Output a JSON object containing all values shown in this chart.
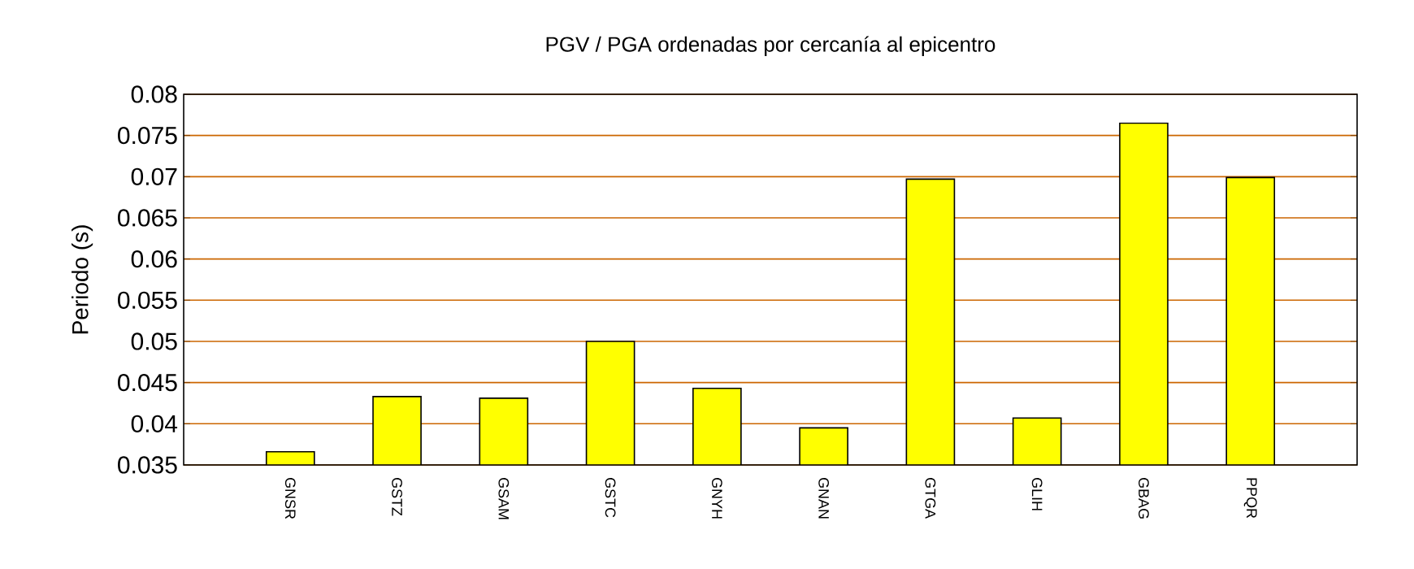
{
  "chart_data": {
    "type": "bar",
    "title": "PGV / PGA ordenadas por cercanía al epicentro",
    "ylabel": "Periodo (s)",
    "categories": [
      "GNSR",
      "GSTZ",
      "GSAM",
      "GSTC",
      "GNYH",
      "GNAN",
      "GTGA",
      "GLIH",
      "GBAG",
      "PPQR"
    ],
    "values": [
      0.0366,
      0.0433,
      0.0431,
      0.05,
      0.0443,
      0.0395,
      0.0697,
      0.0407,
      0.0765,
      0.0699
    ],
    "color": "#ffff00",
    "ylim": [
      0.035,
      0.08
    ],
    "yticks": [
      0.035,
      0.04,
      0.045,
      0.05,
      0.055,
      0.06,
      0.065,
      0.07,
      0.075,
      0.08
    ],
    "grid": "y"
  }
}
